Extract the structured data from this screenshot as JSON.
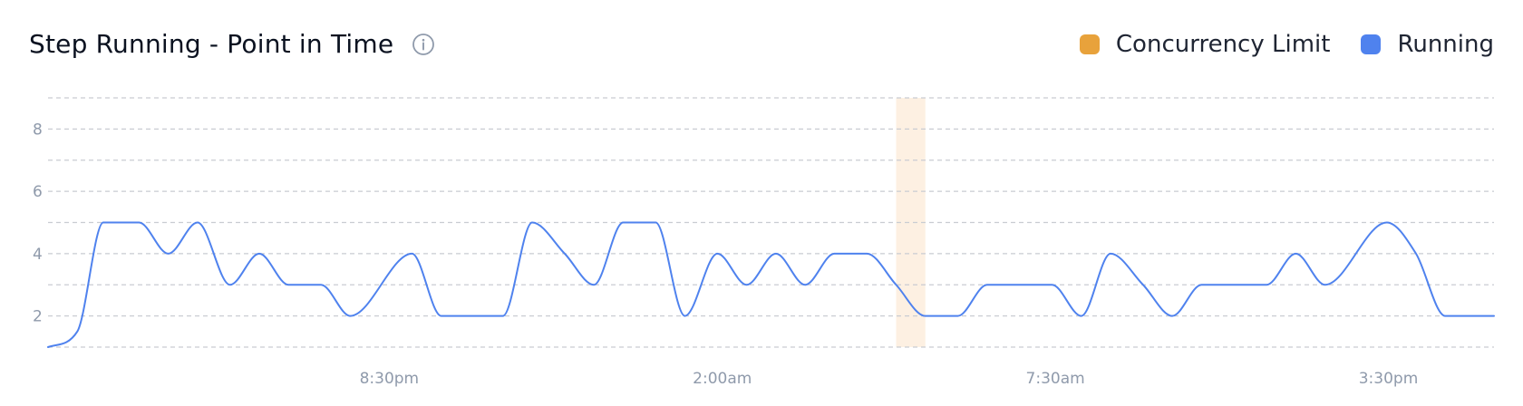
{
  "header": {
    "title": "Step Running - Point in Time",
    "info_icon": "info-circle-icon"
  },
  "legend": [
    {
      "label": "Concurrency Limit",
      "color": "#E8A23B"
    },
    {
      "label": "Running",
      "color": "#4F82EE"
    }
  ],
  "colors": {
    "running_line": "#4F82EE",
    "limit_band": "#FDF0E2",
    "grid": "#c9ccd2",
    "tick_text": "#8f9aab"
  },
  "chart_data": {
    "type": "line",
    "title": "Step Running - Point in Time",
    "xlabel": "",
    "ylabel": "",
    "ylim": [
      1,
      9
    ],
    "y_ticks": [
      2,
      4,
      6,
      8
    ],
    "grid": true,
    "legend_position": "top-right",
    "x_tick_labels": [
      "8:30pm",
      "2:00am",
      "7:30am",
      "3:30pm"
    ],
    "x_tick_positions": [
      10.5,
      20.75,
      31,
      41.25
    ],
    "xlim": [
      0,
      44.5
    ],
    "series": [
      {
        "name": "Running",
        "points": [
          [
            0,
            1
          ],
          [
            0.9,
            1.5
          ],
          [
            1.7,
            5
          ],
          [
            2.8,
            5
          ],
          [
            3.7,
            4
          ],
          [
            4.6,
            5
          ],
          [
            5.6,
            3
          ],
          [
            6.5,
            4
          ],
          [
            7.4,
            3
          ],
          [
            8.4,
            3
          ],
          [
            9.3,
            2
          ],
          [
            11.2,
            4
          ],
          [
            12.1,
            2
          ],
          [
            14,
            2
          ],
          [
            14.9,
            5
          ],
          [
            15.9,
            4
          ],
          [
            16.8,
            3
          ],
          [
            17.7,
            5
          ],
          [
            18.7,
            5
          ],
          [
            19.6,
            2
          ],
          [
            20.6,
            4
          ],
          [
            21.5,
            3
          ],
          [
            22.4,
            4
          ],
          [
            23.3,
            3
          ],
          [
            24.2,
            4
          ],
          [
            25.2,
            4
          ],
          [
            26.1,
            3
          ],
          [
            27,
            2
          ],
          [
            28,
            2
          ],
          [
            28.9,
            3
          ],
          [
            30.9,
            3
          ],
          [
            31.8,
            2
          ],
          [
            32.7,
            4
          ],
          [
            33.7,
            3
          ],
          [
            34.6,
            2
          ],
          [
            35.5,
            3
          ],
          [
            37.5,
            3
          ],
          [
            38.4,
            4
          ],
          [
            39.3,
            3
          ],
          [
            41.2,
            5
          ],
          [
            42.1,
            4
          ],
          [
            43,
            2
          ],
          [
            44.5,
            2
          ]
        ]
      },
      {
        "name": "Concurrency Limit",
        "band": [
          26.1,
          27
        ]
      }
    ]
  }
}
